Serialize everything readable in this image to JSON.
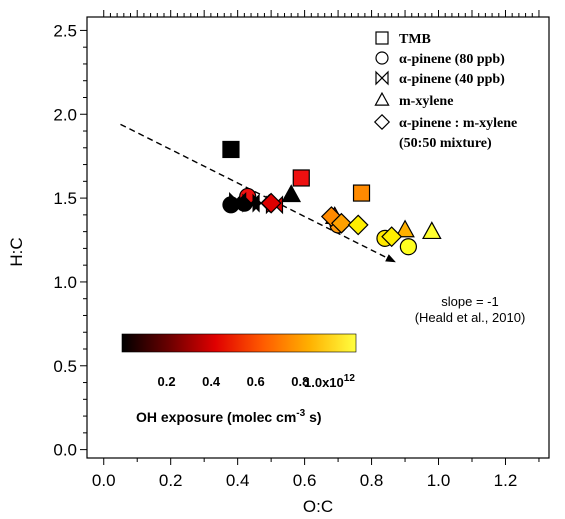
{
  "chart_data": {
    "type": "scatter",
    "xlabel": "O:C",
    "ylabel": "H:C",
    "xlim": [
      -0.05,
      1.33
    ],
    "ylim": [
      -0.05,
      2.58
    ],
    "x_ticks": [
      0.0,
      0.2,
      0.4,
      0.6,
      0.8,
      1.0,
      1.2
    ],
    "x_tick_labels": [
      "0.0",
      "0.2",
      "0.4",
      "0.6",
      "0.8",
      "1.0",
      "1.2"
    ],
    "y_ticks": [
      0.0,
      0.5,
      1.0,
      1.5,
      2.0,
      2.5
    ],
    "y_tick_labels": [
      "0.0",
      "0.5",
      "1.0",
      "1.5",
      "2.0",
      "2.5"
    ],
    "legend": {
      "placement": "top-right",
      "entries": [
        {
          "symbol": "square",
          "label": "TMB"
        },
        {
          "symbol": "circle",
          "label": "α-pinene (80 ppb)"
        },
        {
          "symbol": "bowtie",
          "label": "α-pinene (40 ppb)"
        },
        {
          "symbol": "triangle",
          "label": "m-xylene"
        },
        {
          "symbol": "diamond",
          "label": "α-pinene : m-xylene"
        }
      ],
      "extra_line": "(50:50 mixture)"
    },
    "slope_line": {
      "x": [
        0.05,
        0.87
      ],
      "y": [
        1.94,
        1.12
      ]
    },
    "annotations": [
      "slope = -1",
      "(Heald et al., 2010)"
    ],
    "colorbar": {
      "min": 0,
      "max": 1050000000000.0,
      "tick_values": [
        0.2,
        0.4,
        0.6,
        0.8
      ],
      "tick_labels": [
        "0.2",
        "0.4",
        "0.6",
        "0.8"
      ],
      "last_label": "1.0x10",
      "last_label_exp": "12",
      "title_main": "OH exposure (molec cm",
      "title_sup": "-3",
      "title_end": " s)",
      "colors": [
        "#000000",
        "#6a0000",
        "#e00000",
        "#ff5a00",
        "#ffb000",
        "#ffff40"
      ]
    },
    "series": [
      {
        "name": "TMB",
        "symbol": "square",
        "points": [
          {
            "x": 0.38,
            "y": 1.79,
            "c": "#000000"
          },
          {
            "x": 0.59,
            "y": 1.62,
            "c": "#ee1010"
          },
          {
            "x": 0.77,
            "y": 1.53,
            "c": "#ff8a00"
          }
        ]
      },
      {
        "name": "α-pinene (80 ppb)",
        "symbol": "circle",
        "points": [
          {
            "x": 0.38,
            "y": 1.46,
            "c": "#000000"
          },
          {
            "x": 0.42,
            "y": 1.47,
            "c": "#000000"
          },
          {
            "x": 0.43,
            "y": 1.51,
            "c": "#ee1010"
          },
          {
            "x": 0.7,
            "y": 1.34,
            "c": "#ff9a10"
          },
          {
            "x": 0.84,
            "y": 1.26,
            "c": "#ffe800"
          },
          {
            "x": 0.91,
            "y": 1.21,
            "c": "#ffff20"
          }
        ]
      },
      {
        "name": "α-pinene (40 ppb)",
        "symbol": "bowtie",
        "points": [
          {
            "x": 0.4,
            "y": 1.48,
            "c": "#000000"
          },
          {
            "x": 0.44,
            "y": 1.47,
            "c": "#000000"
          },
          {
            "x": 0.47,
            "y": 1.47,
            "c": "#000000"
          },
          {
            "x": 0.51,
            "y": 1.46,
            "c": "#dd0000"
          }
        ]
      },
      {
        "name": "m-xylene",
        "symbol": "triangle",
        "points": [
          {
            "x": 0.56,
            "y": 1.52,
            "c": "#000000"
          },
          {
            "x": 0.69,
            "y": 1.39,
            "c": "#ee1010"
          },
          {
            "x": 0.9,
            "y": 1.31,
            "c": "#ffb000"
          },
          {
            "x": 0.98,
            "y": 1.3,
            "c": "#ffff30"
          }
        ]
      },
      {
        "name": "α-pinene : m-xylene",
        "symbol": "diamond",
        "points": [
          {
            "x": 0.5,
            "y": 1.47,
            "c": "#dd0000"
          },
          {
            "x": 0.68,
            "y": 1.39,
            "c": "#ff8a00"
          },
          {
            "x": 0.71,
            "y": 1.35,
            "c": "#ffa000"
          },
          {
            "x": 0.76,
            "y": 1.34,
            "c": "#ffee00"
          },
          {
            "x": 0.86,
            "y": 1.27,
            "c": "#ffee00"
          }
        ]
      }
    ]
  }
}
